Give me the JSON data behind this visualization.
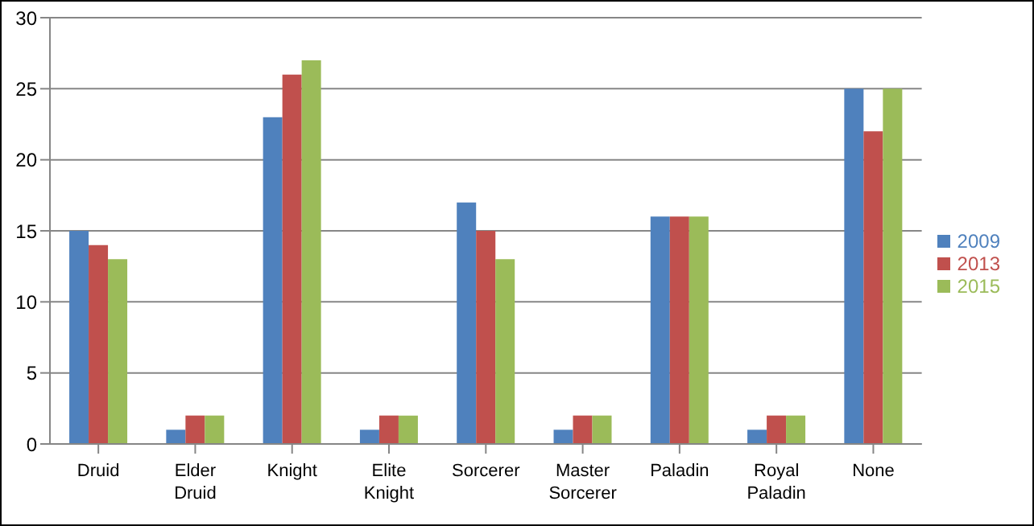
{
  "chart_data": {
    "type": "bar",
    "categories": [
      "Druid",
      "Elder Druid",
      "Knight",
      "Elite Knight",
      "Sorcerer",
      "Master Sorcerer",
      "Paladin",
      "Royal Paladin",
      "None"
    ],
    "series": [
      {
        "name": "2009",
        "color": "#4f81bd",
        "values": [
          15,
          1,
          23,
          1,
          17,
          1,
          16,
          1,
          25
        ]
      },
      {
        "name": "2013",
        "color": "#c0504d",
        "values": [
          14,
          2,
          26,
          2,
          15,
          2,
          16,
          2,
          22
        ]
      },
      {
        "name": "2015",
        "color": "#9bbb59",
        "values": [
          13,
          2,
          27,
          2,
          13,
          2,
          16,
          2,
          25
        ]
      }
    ],
    "ylim": [
      0,
      30
    ],
    "yticks": [
      0,
      5,
      10,
      15,
      20,
      25,
      30
    ],
    "grid": "y",
    "legend": "right"
  }
}
